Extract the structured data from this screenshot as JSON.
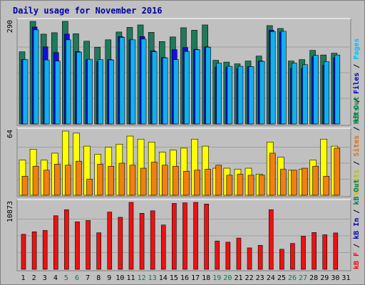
{
  "chart_data": {
    "type": "bar",
    "title": "Daily usage for November 2016",
    "categories": [
      "1",
      "2",
      "3",
      "4",
      "5",
      "6",
      "7",
      "8",
      "9",
      "10",
      "11",
      "12",
      "13",
      "14",
      "15",
      "16",
      "17",
      "18",
      "19",
      "20",
      "21",
      "22",
      "23",
      "24",
      "25",
      "26",
      "27",
      "28",
      "29",
      "30",
      "31"
    ],
    "weekend_days": [
      "5",
      "6",
      "12",
      "13",
      "19",
      "20",
      "26",
      "27"
    ],
    "panels": [
      {
        "name": "hits-files-pages",
        "max_label": "290",
        "ylim": [
          0,
          290
        ],
        "side_labels": [
          {
            "text": "Hits",
            "color": "#008040"
          },
          {
            "text": " / ",
            "color": "#000000"
          },
          {
            "text": "Files",
            "color": "#0000c0"
          },
          {
            "text": " / ",
            "color": "#000000"
          },
          {
            "text": "Pages",
            "color": "#00c0ff"
          }
        ],
        "series": [
          {
            "name": "Hits",
            "color": "#1f7a5a",
            "values": [
              204,
              290,
              254,
              258,
              290,
              255,
              234,
              217,
              238,
              260,
              273,
              280,
              259,
              233,
              246,
              272,
              265,
              280,
              180,
              175,
              170,
              178,
              192,
              278,
              270,
              178,
              182,
              208,
              195,
              200,
              null
            ]
          },
          {
            "name": "Files",
            "color": "#1010e0",
            "values": [
              182,
              274,
              218,
              202,
              254,
              205,
              182,
              176,
              182,
              247,
              238,
              247,
              207,
              188,
              210,
              216,
              211,
              218,
              161,
              160,
              157,
              162,
              178,
              265,
              260,
              157,
              157,
              190,
              166,
              187,
              null
            ]
          },
          {
            "name": "Pages",
            "color": "#10b0f0",
            "values": [
              182,
              266,
              181,
              178,
              238,
              203,
              183,
              182,
              181,
              245,
              238,
              240,
              204,
              187,
              182,
              205,
              210,
              217,
              172,
              163,
              163,
              162,
              177,
              261,
              262,
              172,
              168,
              194,
              176,
              195,
              null
            ]
          }
        ]
      },
      {
        "name": "visits-sites-kbout",
        "max_label": "64",
        "ylim": [
          0,
          64
        ],
        "side_labels": [
          {
            "text": "Visits",
            "color": "#c0c000"
          },
          {
            "text": " / ",
            "color": "#000000"
          },
          {
            "text": "Sites",
            "color": "#e07000"
          },
          {
            "text": " / ",
            "color": "#000000"
          },
          {
            "text": "kB Out",
            "color": "#008040"
          }
        ],
        "series": [
          {
            "name": "Visits",
            "color": "#ffff00",
            "values": [
              35,
              46,
              35,
              42,
              64,
              62,
              49,
              41,
              48,
              51,
              59,
              56,
              53,
              43,
              45,
              47,
              56,
              49,
              27,
              27,
              26,
              27,
              21,
              53,
              38,
              25,
              26,
              35,
              56,
              49,
              null
            ]
          },
          {
            "name": "Sites",
            "color": "#f08010",
            "values": [
              19,
              29,
              25,
              31,
              30,
              34,
              16,
              31,
              29,
              32,
              30,
              27,
              33,
              30,
              29,
              24,
              25,
              26,
              30,
              20,
              21,
              20,
              20,
              42,
              26,
              25,
              27,
              29,
              19,
              47,
              null
            ]
          },
          {
            "name": "kB Out",
            "color": "#00a060",
            "values": [
              0,
              0,
              0,
              0,
              0,
              0,
              0,
              0,
              0,
              0,
              0,
              0,
              0,
              0,
              0,
              0,
              0,
              0,
              0,
              0,
              0,
              0,
              0,
              0,
              0,
              0,
              0,
              0,
              0,
              0,
              null
            ]
          }
        ]
      },
      {
        "name": "kbin-kbf",
        "max_label": "10873",
        "ylim": [
          0,
          10873
        ],
        "side_labels": [
          {
            "text": "kB F",
            "color": "#ff0000"
          },
          {
            "text": " / ",
            "color": "#000000"
          },
          {
            "text": "kB In",
            "color": "#0000c0"
          },
          {
            "text": " / ",
            "color": "#000000"
          },
          {
            "text": "kB Out",
            "color": "#008040"
          }
        ],
        "series": [
          {
            "name": "kB F",
            "color": "#ee1111",
            "values": [
              5690,
              6100,
              6310,
              8700,
              9680,
              7710,
              7930,
              5940,
              9300,
              8450,
              10873,
              9100,
              9500,
              7200,
              10700,
              10800,
              10873,
              10600,
              4600,
              4410,
              5080,
              3480,
              3900,
              9680,
              3260,
              4200,
              5380,
              5980,
              5610,
              5910,
              null
            ]
          }
        ]
      }
    ]
  }
}
